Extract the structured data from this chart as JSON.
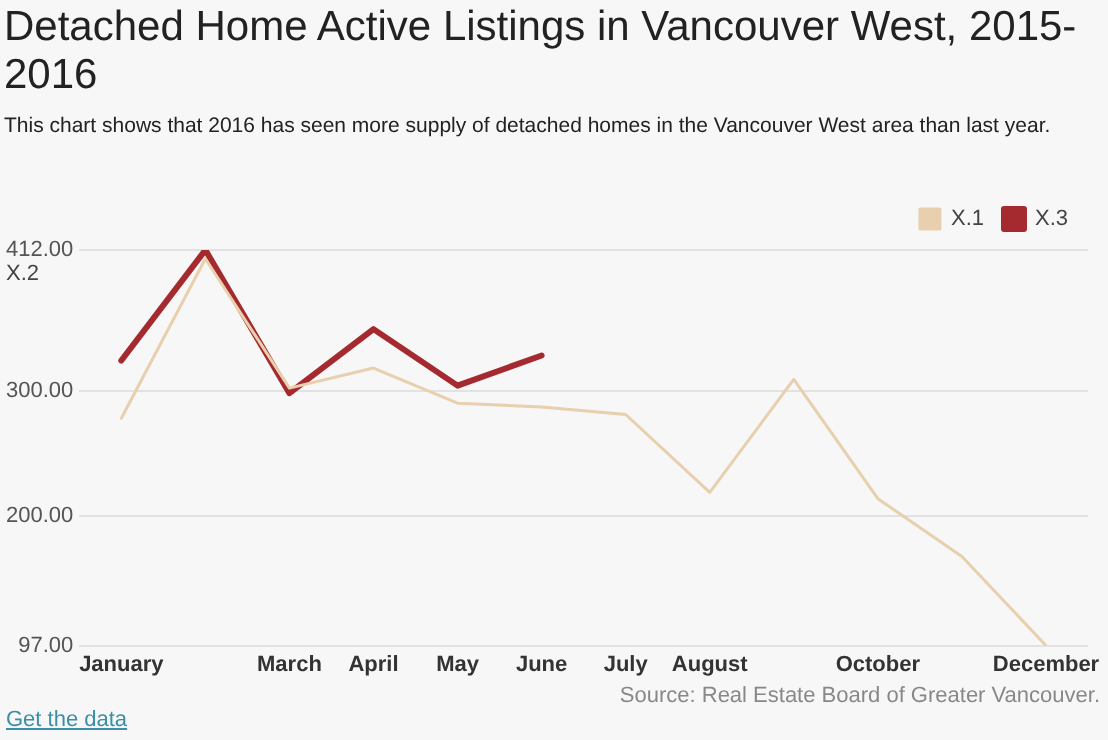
{
  "chart_data": {
    "type": "line",
    "title": "Detached Home Active Listings in Vancouver West, 2015-2016",
    "subtitle": "This chart shows that 2016 has seen more supply of detached homes in the Vancouver West area than last year.",
    "ylabel": "X.2",
    "categories": [
      "January",
      null,
      "March",
      "April",
      "May",
      "June",
      "July",
      "August",
      null,
      "October",
      null,
      "December"
    ],
    "series": [
      {
        "name": "X.1",
        "color": "#e8cfae",
        "values": [
          278,
          405,
          302,
          318,
          290,
          287,
          281,
          219,
          309,
          214,
          168,
          97
        ]
      },
      {
        "name": "X.3",
        "color": "#a52a2f",
        "values": [
          324,
          412,
          298,
          349,
          304,
          328,
          null,
          null,
          null,
          null,
          null,
          null
        ]
      }
    ],
    "ylim": [
      97,
      412
    ],
    "yticks": [
      {
        "value": 97,
        "label": "97.00"
      },
      {
        "value": 200,
        "label": "200.00"
      },
      {
        "value": 300,
        "label": "300.00"
      },
      {
        "value": 412,
        "label": "412.00"
      }
    ],
    "grid": "y",
    "legend": "top right",
    "marker": "none",
    "line_style": "solid",
    "annotations": [
      "Source: Real Estate Board of Greater Vancouver.",
      "Get the data"
    ]
  }
}
